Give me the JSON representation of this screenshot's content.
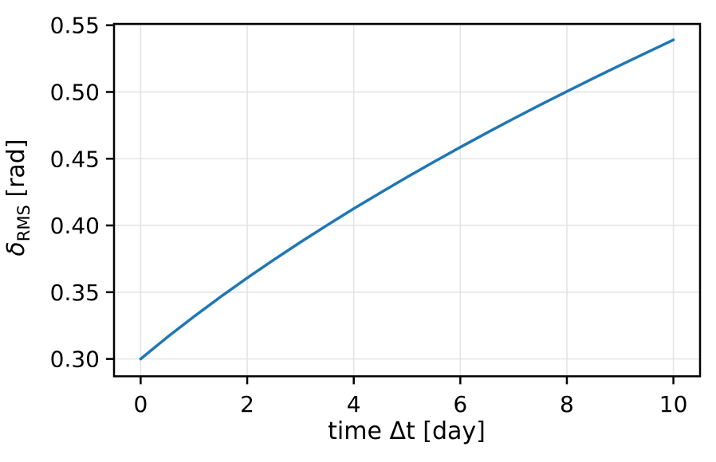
{
  "chart_data": {
    "type": "line",
    "title": "",
    "xlabel": "time Δt [day]",
    "ylabel": "δRMS [rad]",
    "ylabel_parts": {
      "symbol": "δ",
      "subscript": "RMS",
      "unit": " [rad]"
    },
    "x": [
      0,
      0.5,
      1,
      1.5,
      2,
      2.5,
      3,
      3.5,
      4,
      4.5,
      5,
      5.5,
      6,
      6.5,
      7,
      7.5,
      8,
      8.5,
      9,
      9.5,
      10
    ],
    "y": [
      0.3,
      0.3163,
      0.3317,
      0.3465,
      0.3607,
      0.3743,
      0.3875,
      0.4002,
      0.4126,
      0.4245,
      0.4362,
      0.4475,
      0.4586,
      0.4694,
      0.48,
      0.4903,
      0.5004,
      0.5103,
      0.52,
      0.5296,
      0.539
    ],
    "xlim": [
      -0.5,
      10.5
    ],
    "ylim": [
      0.287,
      0.551
    ],
    "xticks": [
      0,
      2,
      4,
      6,
      8,
      10
    ],
    "xtick_labels": [
      "0",
      "2",
      "4",
      "6",
      "8",
      "10"
    ],
    "yticks": [
      0.3,
      0.35,
      0.4,
      0.45,
      0.5,
      0.55
    ],
    "ytick_labels": [
      "0.30",
      "0.35",
      "0.40",
      "0.45",
      "0.50",
      "0.55"
    ],
    "grid": true,
    "legend_position": "none",
    "colors": {
      "line": "#1f77b4",
      "grid": "#e4e4e4",
      "spine": "#000000",
      "tick_label": "#000000",
      "background": "#ffffff"
    },
    "line_width": 3.5
  }
}
